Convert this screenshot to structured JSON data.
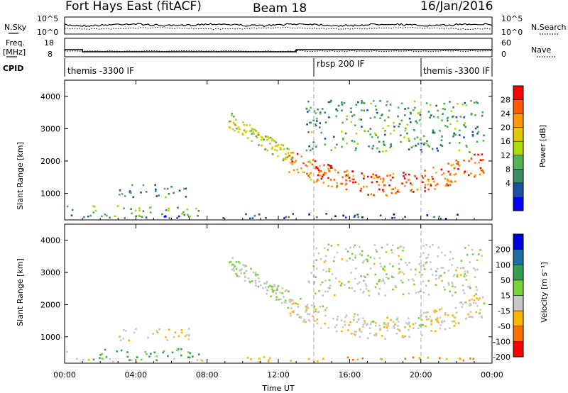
{
  "header": {
    "station": "Fort Hays East (fitACF)",
    "beam": "Beam 18",
    "date": "16/Jan/2016"
  },
  "top_panels": {
    "nsky_label": "N.Sky",
    "nsky_ticks": [
      "10^5",
      "10^0"
    ],
    "nsearch_label": "N.Search",
    "freq_label_line1": "Freq.",
    "freq_label_line2": "[MHz]",
    "freq_ticks": [
      "18",
      "8"
    ],
    "nave_label": "Nave",
    "nave_ticks": [
      "60",
      "0"
    ],
    "cpid_label": "CPID",
    "cpid_segments": [
      {
        "label": "themis -3300 IF",
        "start_hour": 0
      },
      {
        "label": "rbsp 200 IF",
        "start_hour": 14
      },
      {
        "label": "themis -3300 IF",
        "start_hour": 20
      }
    ]
  },
  "power_panel": {
    "ylabel": "Slant Range [km]",
    "yticks": [
      1000,
      2000,
      3000,
      4000
    ],
    "colorbar_label": "Power [dB]",
    "colorbar_ticks": [
      "28",
      "24",
      "20",
      "16",
      "12",
      "8",
      "4"
    ],
    "colors": [
      "#0000ff",
      "#1e50a0",
      "#3c8c64",
      "#50b450",
      "#aadc00",
      "#e6c800",
      "#ff9600",
      "#ff5a00",
      "#ff0000"
    ]
  },
  "velocity_panel": {
    "ylabel": "Slant Range [km]",
    "yticks": [
      1000,
      2000,
      3000,
      4000
    ],
    "colorbar_label": "Velocity [m s⁻¹]",
    "colorbar_ticks": [
      "200",
      "100",
      "50",
      "15",
      "-15",
      "-50",
      "-100",
      "-200"
    ],
    "colors": [
      "#0000dc",
      "#1e6ea0",
      "#32a050",
      "#78d23c",
      "#c8c8c8",
      "#ffb400",
      "#ff6e00",
      "#ff0000"
    ]
  },
  "xaxis": {
    "label": "Time UT",
    "ticks": [
      "00:00",
      "04:00",
      "08:00",
      "12:00",
      "16:00",
      "20:00",
      "00:00"
    ]
  },
  "chart_data": {
    "type": "heatmap",
    "x_range_hours": [
      0,
      24
    ],
    "y_range_km": [
      180,
      4500
    ],
    "power_db_range": [
      0,
      30
    ],
    "velocity_range": [
      -250,
      250
    ],
    "freq_mhz": [
      {
        "from": 0,
        "to": 1,
        "value": 12
      },
      {
        "from": 1,
        "to": 13,
        "value": 10.5
      },
      {
        "from": 13,
        "to": 24,
        "value": 12
      }
    ],
    "scatter_regions": [
      {
        "t_start": 0.0,
        "t_end": 9.0,
        "range_lo": 200,
        "range_hi": 350,
        "power_db": 6,
        "velocity": 0
      },
      {
        "t_start": 0.0,
        "t_end": 0.6,
        "range_lo": 500,
        "range_hi": 650,
        "power_db": 12,
        "velocity": 20
      },
      {
        "t_start": 1.5,
        "t_end": 7.5,
        "range_lo": 300,
        "range_hi": 650,
        "power_db": 12,
        "velocity": 60
      },
      {
        "t_start": 3.0,
        "t_end": 7.0,
        "range_lo": 900,
        "range_hi": 1300,
        "power_db": 9,
        "velocity": -10
      },
      {
        "t_start": 9.2,
        "t_end": 12.8,
        "range_lo": 1900,
        "range_hi": 3600,
        "power_db": 16,
        "velocity": 10
      },
      {
        "t_start": 12.5,
        "t_end": 23.6,
        "range_lo": 1000,
        "range_hi": 2300,
        "power_db": 24,
        "velocity": -5
      },
      {
        "t_start": 13.5,
        "t_end": 23.5,
        "range_lo": 2300,
        "range_hi": 3900,
        "power_db": 10,
        "velocity": 5
      },
      {
        "t_start": 10.0,
        "t_end": 23.5,
        "range_lo": 200,
        "range_hi": 400,
        "power_db": 4,
        "velocity": -40
      }
    ]
  }
}
